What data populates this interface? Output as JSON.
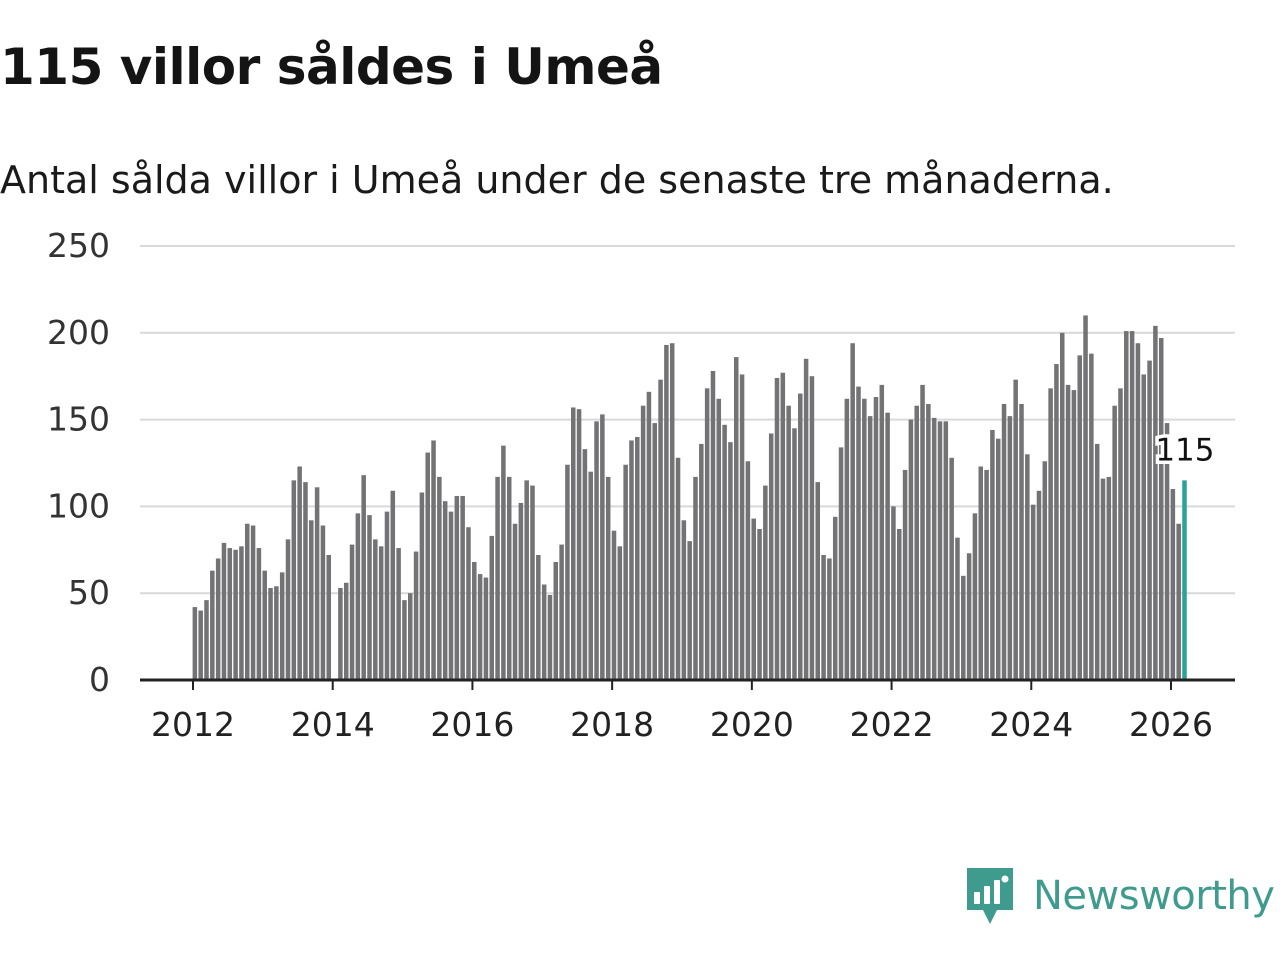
{
  "title": "115 villor såldes i Umeå",
  "subtitle": "Antal sålda villor i Umeå under de senaste tre månaderna.",
  "brand": {
    "name": "Newsworthy",
    "icon": "newsworthy-logo-icon",
    "color": "#3e9b8e"
  },
  "colors": {
    "bar": "#737275",
    "highlight": "#2aa296",
    "grid": "#d9d9d9",
    "axis": "#222222"
  },
  "chart_data": {
    "type": "bar",
    "title": "115 villor såldes i Umeå",
    "xlabel": "",
    "ylabel": "",
    "ylim": [
      0,
      250
    ],
    "yticks": [
      0,
      50,
      100,
      150,
      200,
      250
    ],
    "xticks": [
      "2012",
      "2014",
      "2016",
      "2018",
      "2020",
      "2022",
      "2024",
      "2026"
    ],
    "grid": true,
    "start": "2012-01",
    "end": "2026-03",
    "series": [
      {
        "name": "Antal sålda villor (tremånaders)",
        "values": [
          42,
          40,
          46,
          63,
          70,
          79,
          76,
          75,
          77,
          90,
          89,
          76,
          63,
          53,
          54,
          62,
          81,
          115,
          123,
          114,
          92,
          111,
          89,
          72,
          0,
          53,
          56,
          78,
          96,
          118,
          95,
          81,
          77,
          97,
          109,
          76,
          46,
          50,
          74,
          108,
          131,
          138,
          117,
          103,
          97,
          106,
          106,
          88,
          68,
          61,
          59,
          83,
          117,
          135,
          117,
          90,
          102,
          115,
          112,
          72,
          55,
          49,
          68,
          78,
          124,
          157,
          156,
          133,
          120,
          149,
          153,
          117,
          86,
          77,
          124,
          138,
          140,
          158,
          166,
          148,
          173,
          193,
          194,
          128,
          92,
          80,
          117,
          136,
          168,
          178,
          162,
          147,
          137,
          186,
          176,
          126,
          93,
          87,
          112,
          142,
          174,
          177,
          158,
          145,
          165,
          185,
          175,
          114,
          72,
          70,
          94,
          134,
          162,
          194,
          169,
          162,
          152,
          163,
          170,
          154,
          100,
          87,
          121,
          150,
          158,
          170,
          159,
          151,
          149,
          149,
          128,
          82,
          60,
          73,
          96,
          123,
          121,
          144,
          139,
          159,
          152,
          173,
          159,
          130,
          101,
          109,
          126,
          168,
          182,
          200,
          170,
          167,
          187,
          210,
          188,
          136,
          116,
          117,
          158,
          168,
          201,
          201,
          194,
          176,
          184,
          204,
          197,
          148,
          110,
          90,
          115
        ],
        "highlight_last": true
      }
    ],
    "annotations": [
      {
        "label": "115",
        "target": "last"
      }
    ]
  }
}
